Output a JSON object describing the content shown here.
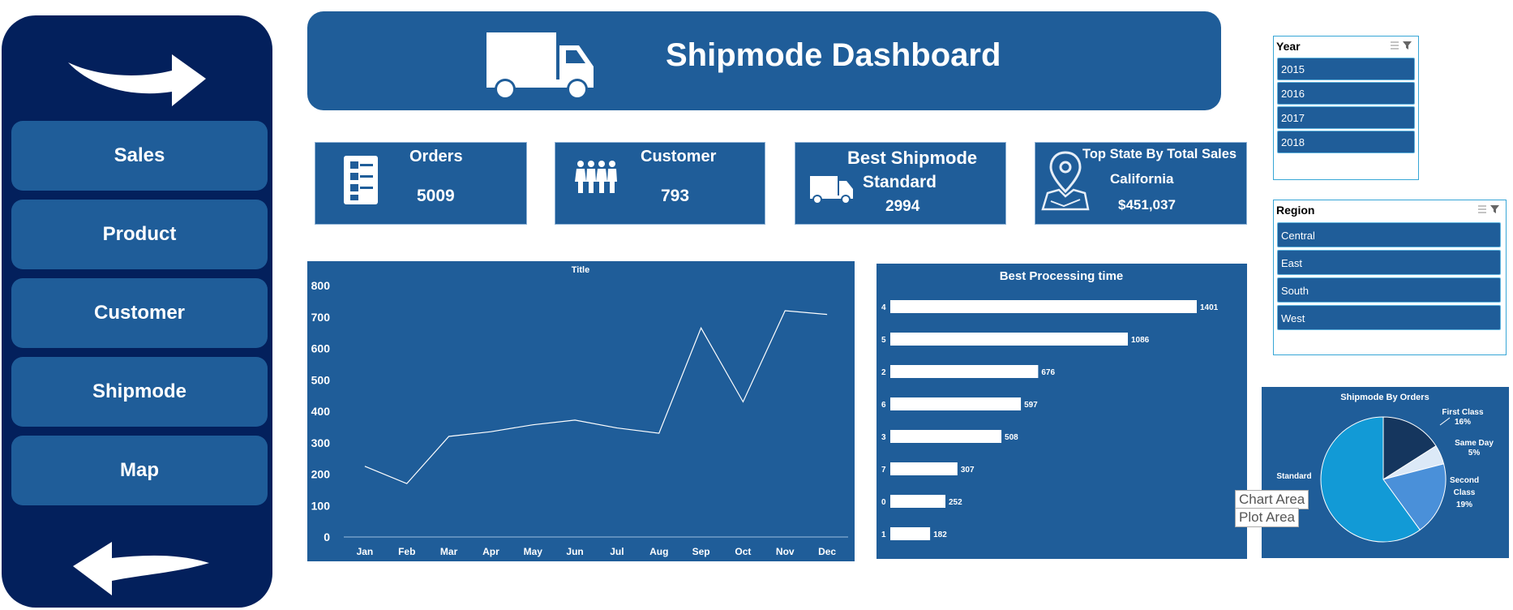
{
  "nav": {
    "items": [
      "Sales",
      "Product",
      "Customer",
      "Shipmode",
      "Map"
    ]
  },
  "header": {
    "title": "Shipmode Dashboard"
  },
  "kpis": {
    "orders": {
      "label": "Orders",
      "value": "5009"
    },
    "customer": {
      "label": "Customer",
      "value": "793"
    },
    "best_shipmode": {
      "label": "Best Shipmode",
      "sub": "Standard",
      "value": "2994"
    },
    "top_state": {
      "label": "Top State By Total Sales",
      "sub": "California",
      "value": "$451,037"
    }
  },
  "line_chart": {
    "title": "Title",
    "y_ticks": [
      "0",
      "100",
      "200",
      "300",
      "400",
      "500",
      "600",
      "700",
      "800"
    ]
  },
  "bar_chart": {
    "title": "Best Processing time"
  },
  "pie_chart": {
    "title": "Shipmode By Orders"
  },
  "slicers": {
    "year": {
      "title": "Year",
      "items": [
        "2015",
        "2016",
        "2017",
        "2018"
      ]
    },
    "region": {
      "title": "Region",
      "items": [
        "Central",
        "East",
        "South",
        "West"
      ]
    }
  },
  "tooltip": {
    "line1": "Chart Area",
    "line2": "Plot Area"
  },
  "colors": {
    "sidebar": "#03205c",
    "panel": "#1f5d99",
    "pie_standard": "#129ad6",
    "pie_first_class": "#15365e",
    "pie_same_day": "#dce9f7",
    "pie_second_class": "#4a90d9"
  },
  "chart_data": [
    {
      "type": "line",
      "title": "Title",
      "categories": [
        "Jan",
        "Feb",
        "Mar",
        "Apr",
        "May",
        "Jun",
        "Jul",
        "Aug",
        "Sep",
        "Oct",
        "Nov",
        "Dec"
      ],
      "values": [
        225,
        170,
        320,
        335,
        357,
        372,
        347,
        330,
        665,
        430,
        720,
        708
      ],
      "ylim": [
        0,
        800
      ],
      "grid": false
    },
    {
      "type": "bar",
      "orientation": "horizontal",
      "title": "Best Processing time",
      "categories": [
        "4",
        "5",
        "2",
        "6",
        "3",
        "7",
        "0",
        "1"
      ],
      "values": [
        1401,
        1086,
        676,
        597,
        508,
        307,
        252,
        182
      ]
    },
    {
      "type": "pie",
      "title": "Shipmode By Orders",
      "slices": [
        {
          "label": "First Class",
          "value": 16,
          "display": "16%"
        },
        {
          "label": "Same Day",
          "value": 5,
          "display": "5%"
        },
        {
          "label": "Second Class",
          "value": 19,
          "display": "19%"
        },
        {
          "label": "Standard",
          "value": 60,
          "display": ""
        }
      ]
    }
  ]
}
